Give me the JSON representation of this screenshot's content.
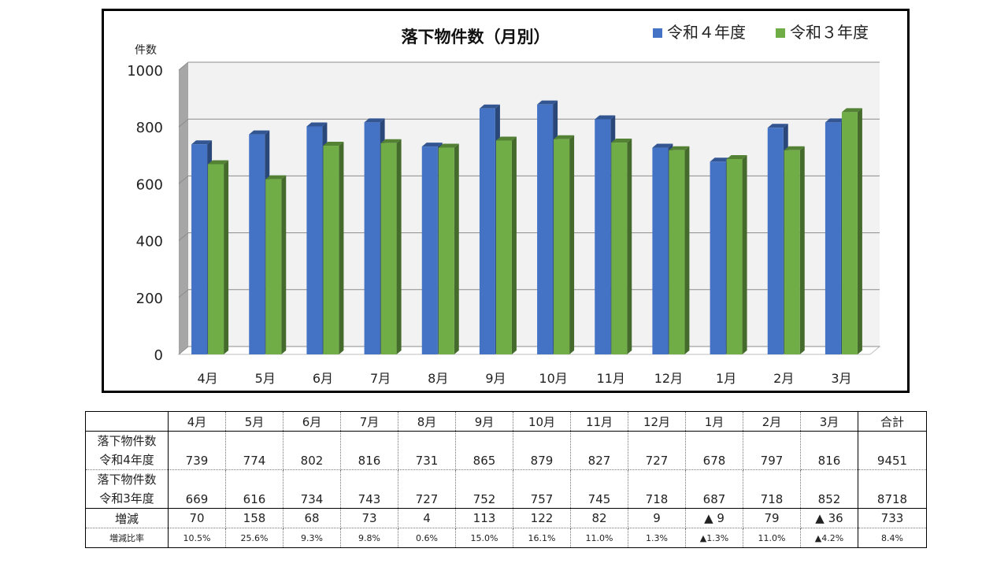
{
  "chart_data": {
    "type": "bar",
    "title": "落下物件数（月別）",
    "ylabel": "件数",
    "xlabel": "",
    "categories": [
      "4月",
      "5月",
      "6月",
      "7月",
      "8月",
      "9月",
      "10月",
      "11月",
      "12月",
      "1月",
      "2月",
      "3月"
    ],
    "series": [
      {
        "name": "令和４年度",
        "color": "#4472C4",
        "values": [
          739,
          774,
          802,
          816,
          731,
          865,
          879,
          827,
          727,
          678,
          797,
          816
        ]
      },
      {
        "name": "令和３年度",
        "color": "#70AD47",
        "values": [
          669,
          616,
          734,
          743,
          727,
          752,
          757,
          745,
          718,
          687,
          718,
          852
        ]
      }
    ],
    "ylim": [
      0,
      1000
    ],
    "yticks": [
      "0",
      "200",
      "400",
      "600",
      "800",
      "1000"
    ],
    "grid": true,
    "legend_position": "top-right"
  },
  "table": {
    "header_label": "",
    "months": [
      "4月",
      "5月",
      "6月",
      "7月",
      "8月",
      "9月",
      "10月",
      "11月",
      "12月",
      "1月",
      "2月",
      "3月"
    ],
    "total_label": "合計",
    "rows": [
      {
        "label1": "落下物件数",
        "label2": "令和4年度",
        "values": [
          "739",
          "774",
          "802",
          "816",
          "731",
          "865",
          "879",
          "827",
          "727",
          "678",
          "797",
          "816"
        ],
        "total": "9451"
      },
      {
        "label1": "落下物件数",
        "label2": "令和3年度",
        "values": [
          "669",
          "616",
          "734",
          "743",
          "727",
          "752",
          "757",
          "745",
          "718",
          "687",
          "718",
          "852"
        ],
        "total": "8718"
      },
      {
        "label1": "増減",
        "label2": "",
        "values": [
          "70",
          "158",
          "68",
          "73",
          "4",
          "113",
          "122",
          "82",
          "9",
          "▲ 9",
          "79",
          "▲ 36"
        ],
        "total": "733"
      },
      {
        "label1": "増減比率",
        "label2": "",
        "values": [
          "10.5%",
          "25.6%",
          "9.3%",
          "9.8%",
          "0.6%",
          "15.0%",
          "16.1%",
          "11.0%",
          "1.3%",
          "▲1.3%",
          "11.0%",
          "▲4.2%"
        ],
        "total": "8.4%"
      }
    ]
  }
}
